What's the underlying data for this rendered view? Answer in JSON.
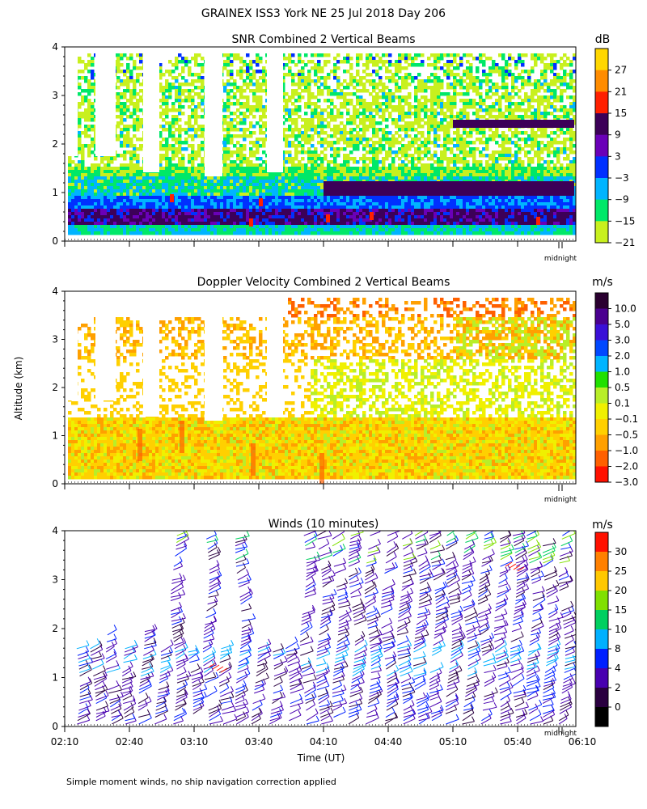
{
  "page_title": "GRAINEX ISS3 York NE  25 Jul 2018 Day 206",
  "footer_note": "Simple moment winds, no ship navigation correction applied",
  "chart_data": [
    {
      "type": "heatmap",
      "title": "SNR Combined 2 Vertical Beams",
      "ylabel": "",
      "y_ticks": [
        "0",
        "1",
        "2",
        "3",
        "4"
      ],
      "ylim": [
        0,
        4
      ],
      "x_marker": "midnight",
      "colorbar": {
        "unit": "dB",
        "labels": [
          "27",
          "21",
          "15",
          "9",
          "3",
          "−3",
          "−9",
          "−15",
          "−21"
        ],
        "colors": [
          "#ffd700",
          "#ff8c00",
          "#ff2000",
          "#3c0058",
          "#6a00b8",
          "#0030ff",
          "#00b4ff",
          "#00e868",
          "#c8f01e"
        ]
      }
    },
    {
      "type": "heatmap",
      "title": "Doppler Velocity Combined 2 Vertical Beams",
      "ylabel": "Altitude (km)",
      "y_ticks": [
        "0",
        "1",
        "2",
        "3",
        "4"
      ],
      "ylim": [
        0,
        4
      ],
      "x_marker": "midnight",
      "colorbar": {
        "unit": "m/s",
        "labels": [
          "10.0",
          "5.0",
          "3.0",
          "2.0",
          "1.0",
          "0.5",
          "0.1",
          "−0.1",
          "−0.5",
          "−1.0",
          "−2.0",
          "−3.0"
        ],
        "colors": [
          "#2a0030",
          "#4a0090",
          "#3a10d8",
          "#0048ff",
          "#00b4ff",
          "#20e000",
          "#b8ee28",
          "#f0f000",
          "#ffd000",
          "#ffa000",
          "#ff6000",
          "#ff1000"
        ]
      }
    },
    {
      "type": "scatter",
      "title": "Winds (10 minutes)",
      "xlabel": "Time (UT)",
      "x_ticks": [
        "02:10",
        "02:40",
        "03:10",
        "03:40",
        "04:10",
        "04:40",
        "05:10",
        "05:40",
        "06:10"
      ],
      "y_ticks": [
        "0",
        "1",
        "2",
        "3",
        "4"
      ],
      "ylim": [
        0,
        4
      ],
      "x_marker": "midnight",
      "colorbar": {
        "unit": "m/s",
        "labels": [
          "30",
          "25",
          "20",
          "15",
          "10",
          "8",
          "4",
          "2",
          "0"
        ],
        "colors": [
          "#ff1000",
          "#ff8000",
          "#ffc800",
          "#80e000",
          "#00d060",
          "#00b0ff",
          "#0020ff",
          "#4800b0",
          "#2a0040",
          "#000000"
        ]
      }
    }
  ]
}
